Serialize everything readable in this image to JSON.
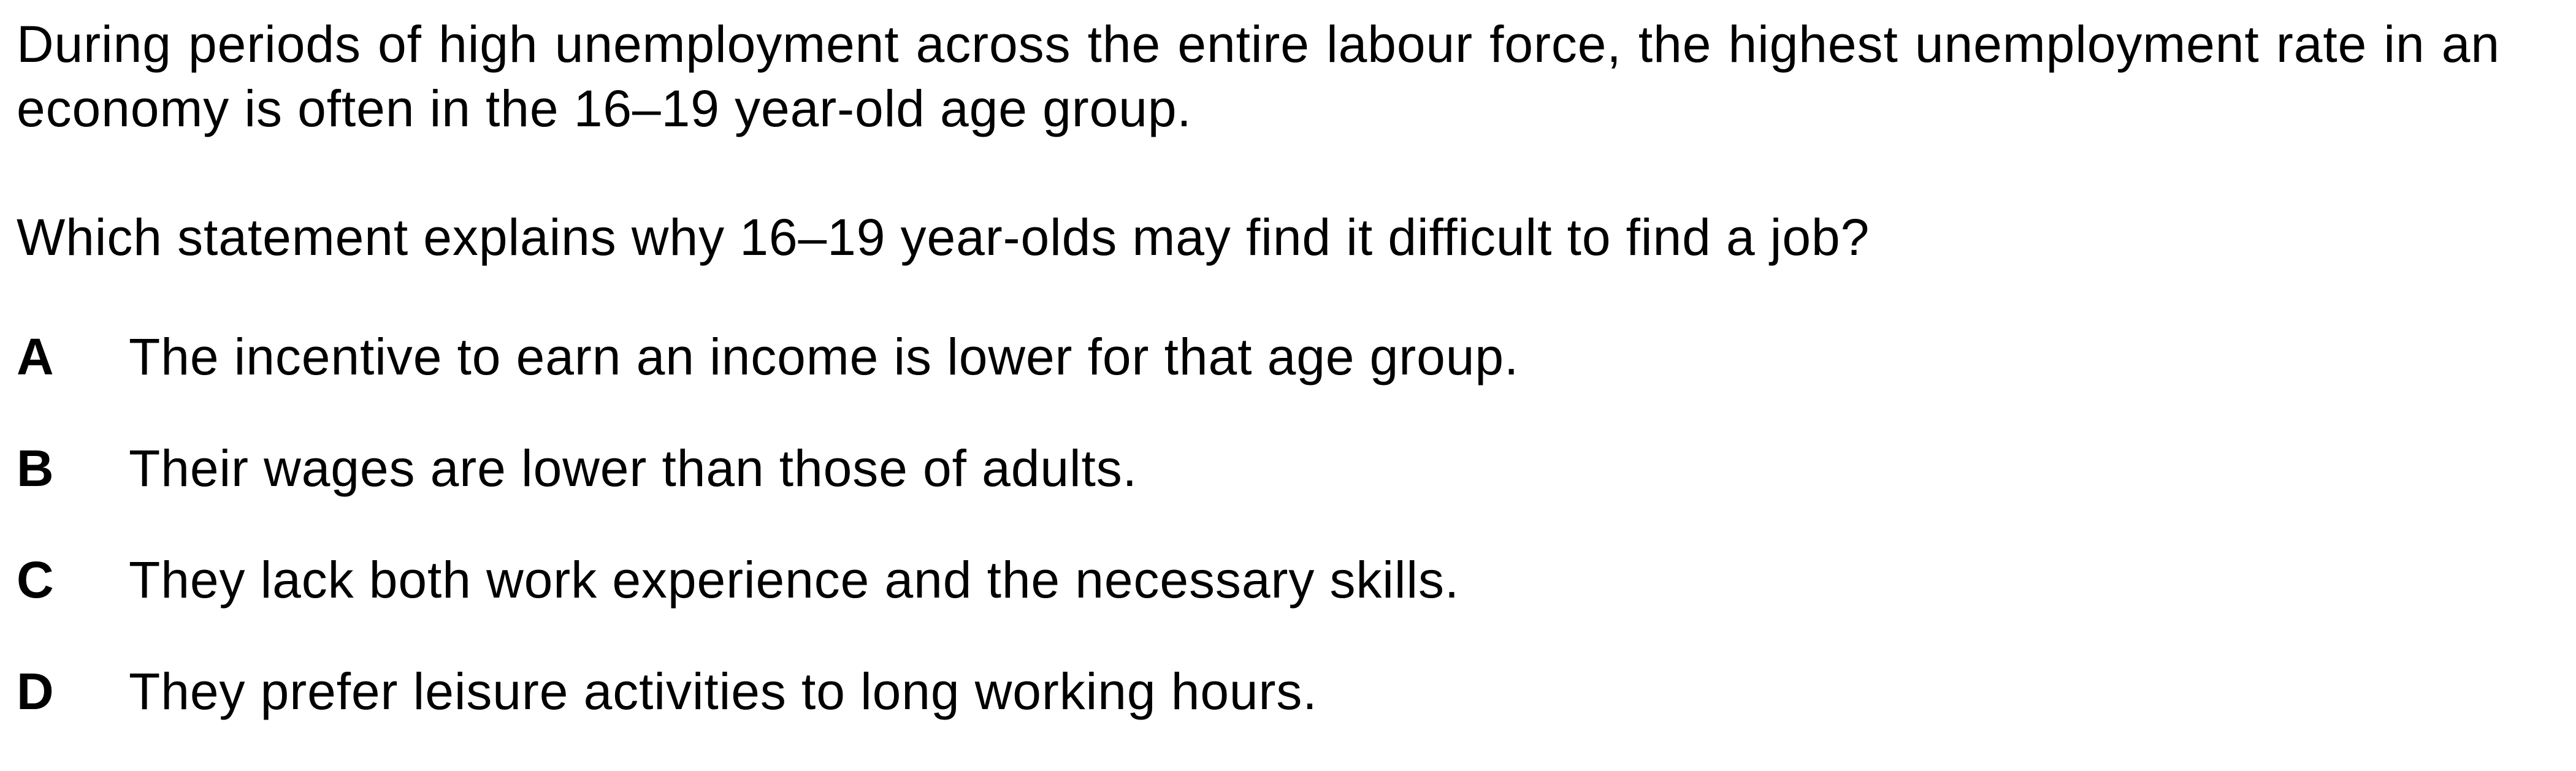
{
  "question": {
    "stem": "During periods of high unemployment across the entire labour force, the highest unemployment rate in an economy is often in the 16–19 year-old age group.",
    "prompt": "Which statement explains why 16–19 year-olds may find it difficult to find a job?",
    "options": [
      {
        "letter": "A",
        "text": "The incentive to earn an income is lower for that age group."
      },
      {
        "letter": "B",
        "text": "Their wages are lower than those of adults."
      },
      {
        "letter": "C",
        "text": "They lack both work experience and the necessary skills."
      },
      {
        "letter": "D",
        "text": "They prefer leisure activities to long working hours."
      }
    ]
  }
}
